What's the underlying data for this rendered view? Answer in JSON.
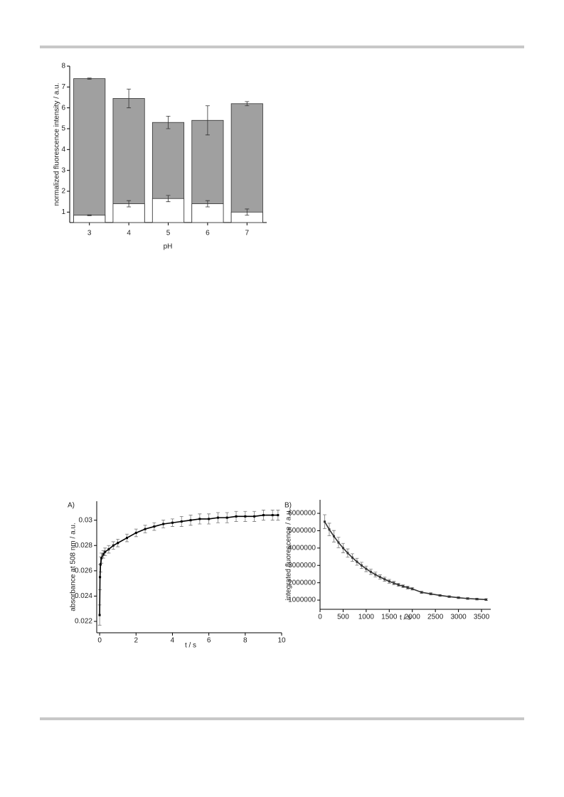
{
  "chart_data": [
    {
      "type": "bar",
      "xlabel": "pH",
      "ylabel": "normalized fluorescence intensity / a.u.",
      "categories": [
        "3",
        "4",
        "5",
        "6",
        "7"
      ],
      "series": [
        {
          "color": "#a0a0a0",
          "values": [
            7.4,
            6.45,
            5.3,
            5.4,
            6.2
          ],
          "errors": [
            0.03,
            0.45,
            0.3,
            0.7,
            0.1
          ]
        },
        {
          "color": "#ffffff",
          "values": [
            0.85,
            1.4,
            1.65,
            1.4,
            1.0
          ],
          "errors": [
            0.02,
            0.15,
            0.15,
            0.15,
            0.15
          ]
        }
      ],
      "ylim": [
        0.5,
        8
      ],
      "yticks": [
        1,
        2,
        3,
        4,
        5,
        6,
        7,
        8
      ]
    },
    {
      "type": "line",
      "label": "A)",
      "xlabel": "t / s",
      "ylabel": "absorbance at 508 nm / a.u.",
      "x": [
        0,
        0.02,
        0.05,
        0.1,
        0.2,
        0.3,
        0.5,
        0.75,
        1,
        1.5,
        2,
        2.5,
        3,
        3.5,
        4,
        4.5,
        5,
        5.5,
        6,
        6.5,
        7,
        7.5,
        8,
        8.5,
        9,
        9.5,
        9.8
      ],
      "series": [
        {
          "color": "#000000",
          "values": [
            0.0225,
            0.0255,
            0.0265,
            0.027,
            0.0273,
            0.0275,
            0.0277,
            0.028,
            0.0282,
            0.0286,
            0.029,
            0.0293,
            0.0295,
            0.0297,
            0.0298,
            0.0299,
            0.03,
            0.0301,
            0.0301,
            0.0302,
            0.0302,
            0.0303,
            0.0303,
            0.0303,
            0.0304,
            0.0304,
            0.0304
          ],
          "errors": [
            0.0008,
            0.001,
            0.0006,
            0.0004,
            0.0003,
            0.0003,
            0.0003,
            0.0003,
            0.0003,
            0.0003,
            0.0003,
            0.0003,
            0.0003,
            0.0003,
            0.0003,
            0.0004,
            0.0004,
            0.0004,
            0.0004,
            0.0004,
            0.0004,
            0.0004,
            0.0004,
            0.0004,
            0.0004,
            0.0004,
            0.0004
          ]
        }
      ],
      "xlim": [
        -0.16,
        10
      ],
      "xticks": [
        0,
        2,
        4,
        6,
        8,
        10
      ],
      "ylim": [
        0.0211,
        0.0315
      ],
      "yticks": [
        0.022,
        0.024,
        0.026,
        0.028,
        0.03
      ]
    },
    {
      "type": "line",
      "label": "B)",
      "xlabel": "t / s",
      "ylabel": "integrated fluorescence / a.u.",
      "x": [
        100,
        200,
        300,
        400,
        500,
        600,
        700,
        800,
        900,
        1000,
        1100,
        1200,
        1300,
        1400,
        1500,
        1600,
        1700,
        1800,
        1900,
        2000,
        2200,
        2400,
        2600,
        2800,
        3000,
        3200,
        3400,
        3600
      ],
      "series": [
        {
          "color": "#333333",
          "values": [
            5520000,
            5070000,
            4680000,
            4320000,
            4000000,
            3710000,
            3450000,
            3210000,
            3000000,
            2800000,
            2630000,
            2470000,
            2330000,
            2200000,
            2080000,
            1980000,
            1880000,
            1800000,
            1720000,
            1650000,
            1450000,
            1360000,
            1270000,
            1200000,
            1140000,
            1090000,
            1060000,
            1030000
          ],
          "errors": [
            400000,
            360000,
            330000,
            300000,
            270000,
            240000,
            220000,
            200000,
            180000,
            160000,
            150000,
            140000,
            130000,
            120000,
            110000,
            100000,
            90000,
            80000,
            80000,
            70000,
            60000,
            60000,
            50000,
            50000,
            50000,
            50000,
            50000,
            50000
          ]
        }
      ],
      "xlim": [
        0,
        3700
      ],
      "xticks": [
        0,
        500,
        1000,
        1500,
        2000,
        2500,
        3000,
        3500
      ],
      "ylim": [
        470000,
        6780000
      ],
      "yticks": [
        1000000,
        2000000,
        3000000,
        4000000,
        5000000,
        6000000
      ]
    }
  ]
}
